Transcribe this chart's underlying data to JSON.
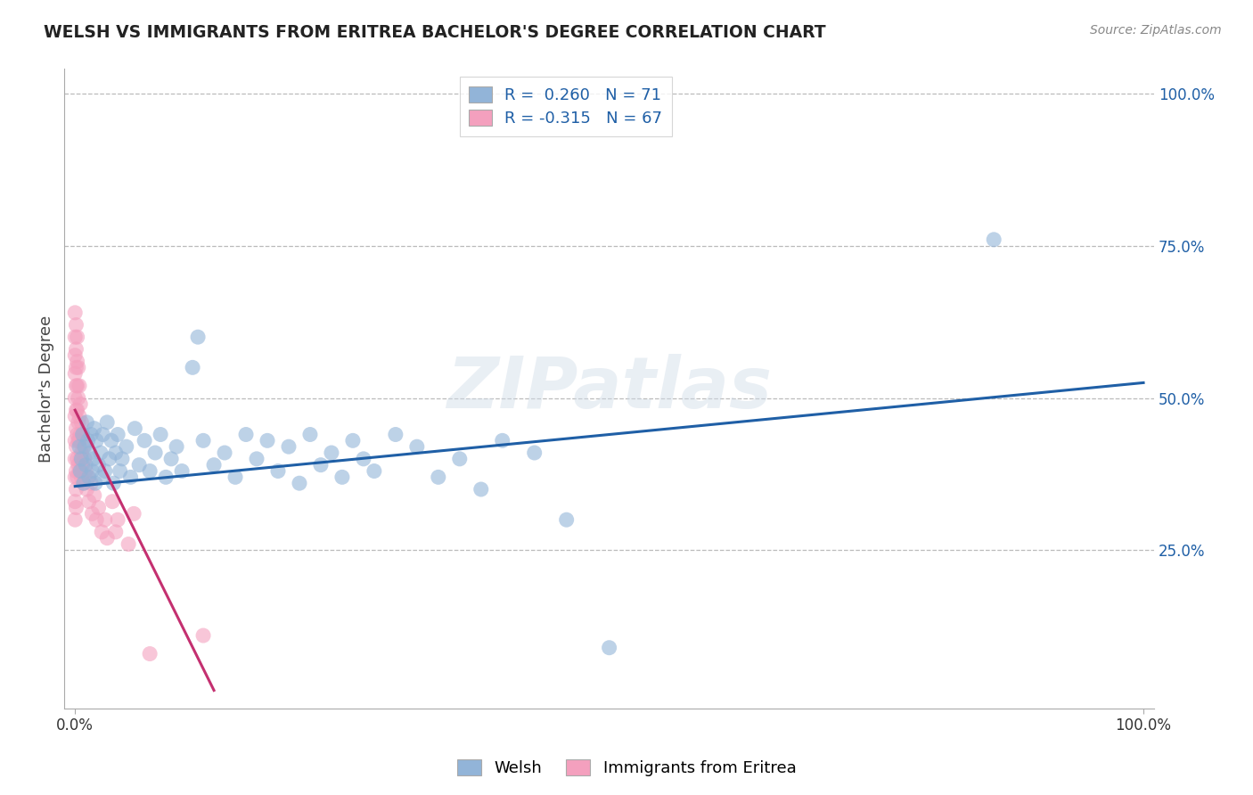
{
  "title": "WELSH VS IMMIGRANTS FROM ERITREA BACHELOR'S DEGREE CORRELATION CHART",
  "source_text": "Source: ZipAtlas.com",
  "ylabel": "Bachelor's Degree",
  "legend_label1": "Welsh",
  "legend_label2": "Immigrants from Eritrea",
  "legend_r1_text": "R =  0.260   N = 71",
  "legend_r2_text": "R = -0.315   N = 67",
  "blue_color": "#92b4d8",
  "pink_color": "#f4a0be",
  "blue_line_color": "#1f5fa6",
  "pink_line_color": "#c43070",
  "blue_scatter": [
    [
      0.004,
      0.42
    ],
    [
      0.005,
      0.38
    ],
    [
      0.006,
      0.4
    ],
    [
      0.007,
      0.44
    ],
    [
      0.008,
      0.36
    ],
    [
      0.009,
      0.42
    ],
    [
      0.01,
      0.39
    ],
    [
      0.011,
      0.46
    ],
    [
      0.012,
      0.43
    ],
    [
      0.013,
      0.37
    ],
    [
      0.014,
      0.41
    ],
    [
      0.015,
      0.44
    ],
    [
      0.016,
      0.38
    ],
    [
      0.017,
      0.4
    ],
    [
      0.018,
      0.45
    ],
    [
      0.019,
      0.36
    ],
    [
      0.02,
      0.43
    ],
    [
      0.022,
      0.39
    ],
    [
      0.024,
      0.41
    ],
    [
      0.025,
      0.37
    ],
    [
      0.026,
      0.44
    ],
    [
      0.028,
      0.38
    ],
    [
      0.03,
      0.46
    ],
    [
      0.032,
      0.4
    ],
    [
      0.034,
      0.43
    ],
    [
      0.036,
      0.36
    ],
    [
      0.038,
      0.41
    ],
    [
      0.04,
      0.44
    ],
    [
      0.042,
      0.38
    ],
    [
      0.044,
      0.4
    ],
    [
      0.048,
      0.42
    ],
    [
      0.052,
      0.37
    ],
    [
      0.056,
      0.45
    ],
    [
      0.06,
      0.39
    ],
    [
      0.065,
      0.43
    ],
    [
      0.07,
      0.38
    ],
    [
      0.075,
      0.41
    ],
    [
      0.08,
      0.44
    ],
    [
      0.085,
      0.37
    ],
    [
      0.09,
      0.4
    ],
    [
      0.095,
      0.42
    ],
    [
      0.1,
      0.38
    ],
    [
      0.11,
      0.55
    ],
    [
      0.115,
      0.6
    ],
    [
      0.12,
      0.43
    ],
    [
      0.13,
      0.39
    ],
    [
      0.14,
      0.41
    ],
    [
      0.15,
      0.37
    ],
    [
      0.16,
      0.44
    ],
    [
      0.17,
      0.4
    ],
    [
      0.18,
      0.43
    ],
    [
      0.19,
      0.38
    ],
    [
      0.2,
      0.42
    ],
    [
      0.21,
      0.36
    ],
    [
      0.22,
      0.44
    ],
    [
      0.23,
      0.39
    ],
    [
      0.24,
      0.41
    ],
    [
      0.25,
      0.37
    ],
    [
      0.26,
      0.43
    ],
    [
      0.27,
      0.4
    ],
    [
      0.28,
      0.38
    ],
    [
      0.3,
      0.44
    ],
    [
      0.32,
      0.42
    ],
    [
      0.34,
      0.37
    ],
    [
      0.36,
      0.4
    ],
    [
      0.38,
      0.35
    ],
    [
      0.4,
      0.43
    ],
    [
      0.43,
      0.41
    ],
    [
      0.46,
      0.3
    ],
    [
      0.5,
      0.09
    ],
    [
      0.86,
      0.76
    ]
  ],
  "pink_scatter": [
    [
      0.0,
      0.64
    ],
    [
      0.0,
      0.6
    ],
    [
      0.0,
      0.57
    ],
    [
      0.0,
      0.54
    ],
    [
      0.0,
      0.5
    ],
    [
      0.0,
      0.47
    ],
    [
      0.0,
      0.43
    ],
    [
      0.0,
      0.4
    ],
    [
      0.0,
      0.37
    ],
    [
      0.0,
      0.33
    ],
    [
      0.0,
      0.3
    ],
    [
      0.001,
      0.62
    ],
    [
      0.001,
      0.58
    ],
    [
      0.001,
      0.55
    ],
    [
      0.001,
      0.52
    ],
    [
      0.001,
      0.48
    ],
    [
      0.001,
      0.45
    ],
    [
      0.001,
      0.42
    ],
    [
      0.001,
      0.38
    ],
    [
      0.001,
      0.35
    ],
    [
      0.001,
      0.32
    ],
    [
      0.002,
      0.6
    ],
    [
      0.002,
      0.56
    ],
    [
      0.002,
      0.52
    ],
    [
      0.002,
      0.48
    ],
    [
      0.002,
      0.44
    ],
    [
      0.002,
      0.4
    ],
    [
      0.002,
      0.37
    ],
    [
      0.003,
      0.55
    ],
    [
      0.003,
      0.5
    ],
    [
      0.003,
      0.46
    ],
    [
      0.003,
      0.43
    ],
    [
      0.003,
      0.39
    ],
    [
      0.004,
      0.52
    ],
    [
      0.004,
      0.47
    ],
    [
      0.004,
      0.43
    ],
    [
      0.004,
      0.38
    ],
    [
      0.005,
      0.49
    ],
    [
      0.005,
      0.44
    ],
    [
      0.005,
      0.4
    ],
    [
      0.006,
      0.46
    ],
    [
      0.006,
      0.41
    ],
    [
      0.006,
      0.37
    ],
    [
      0.007,
      0.44
    ],
    [
      0.007,
      0.39
    ],
    [
      0.008,
      0.42
    ],
    [
      0.008,
      0.36
    ],
    [
      0.009,
      0.4
    ],
    [
      0.01,
      0.38
    ],
    [
      0.011,
      0.35
    ],
    [
      0.012,
      0.37
    ],
    [
      0.013,
      0.33
    ],
    [
      0.015,
      0.36
    ],
    [
      0.016,
      0.31
    ],
    [
      0.018,
      0.34
    ],
    [
      0.02,
      0.3
    ],
    [
      0.022,
      0.32
    ],
    [
      0.025,
      0.28
    ],
    [
      0.028,
      0.3
    ],
    [
      0.03,
      0.27
    ],
    [
      0.035,
      0.33
    ],
    [
      0.038,
      0.28
    ],
    [
      0.04,
      0.3
    ],
    [
      0.05,
      0.26
    ],
    [
      0.055,
      0.31
    ],
    [
      0.07,
      0.08
    ],
    [
      0.12,
      0.11
    ]
  ],
  "blue_line": [
    [
      0.0,
      0.355
    ],
    [
      1.0,
      0.525
    ]
  ],
  "pink_line": [
    [
      0.0,
      0.48
    ],
    [
      0.13,
      0.02
    ]
  ],
  "watermark_text": "ZIPatlas",
  "xlim": [
    0.0,
    1.0
  ],
  "ylim": [
    0.0,
    1.0
  ],
  "xtick_vals": [
    0.0,
    1.0
  ],
  "xtick_labels": [
    "0.0%",
    "100.0%"
  ],
  "ytick_positions": [
    0.25,
    0.5,
    0.75,
    1.0
  ],
  "ytick_labels": [
    "25.0%",
    "50.0%",
    "75.0%",
    "100.0%"
  ],
  "grid_color": "#bbbbbb",
  "background_color": "#ffffff",
  "title_color": "#222222",
  "axis_label_color": "#444444",
  "title_fontsize": 13.5,
  "source_fontsize": 10,
  "tick_fontsize": 12,
  "ylabel_fontsize": 13
}
